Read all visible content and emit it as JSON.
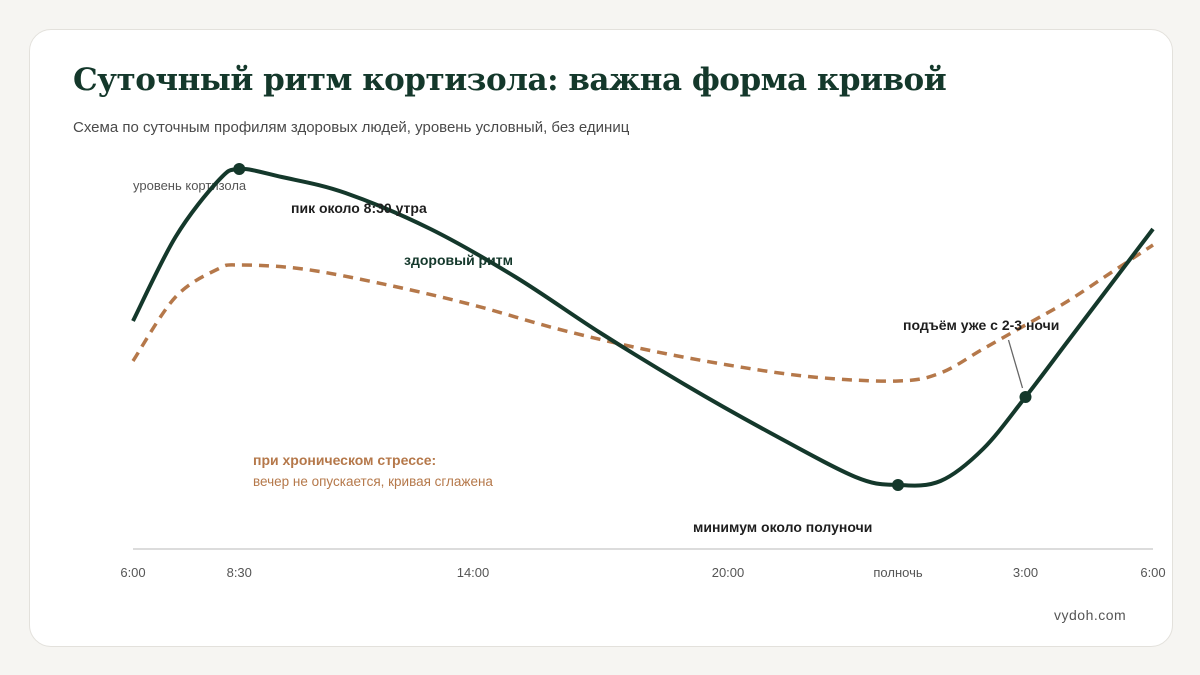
{
  "title": "Суточный ритм кортизола: важна форма кривой",
  "subtitle": "Схема по суточным профилям здоровых людей, уровень условный, без единиц",
  "watermark": "vydoh.com",
  "colors": {
    "healthy": "#14382b",
    "stress": "#b5784a",
    "axis": "#dcdcdc",
    "tick_text": "#555555",
    "annotation": "#1e1e1e"
  },
  "chart_data": {
    "type": "line",
    "ylabel": "уровень кортизола",
    "x_ticks": [
      "6:00",
      "8:30",
      "14:00",
      "20:00",
      "полночь",
      "3:00",
      "6:00"
    ],
    "x_tick_hours": [
      0,
      2.5,
      8,
      14,
      18,
      21,
      24
    ],
    "xlim": [
      0,
      24
    ],
    "ylim": [
      0,
      100
    ],
    "grid": false,
    "series": [
      {
        "name": "здоровый ритм",
        "style": "solid",
        "x": [
          0,
          1,
          2,
          2.5,
          3.5,
          5,
          7,
          9,
          11,
          13,
          15,
          17,
          18,
          19,
          20,
          21,
          22,
          23,
          24
        ],
        "y": [
          57,
          78,
          92,
          95,
          93,
          89,
          80,
          68,
          54,
          41,
          29,
          18,
          16,
          17,
          25,
          38,
          52,
          66,
          80
        ]
      },
      {
        "name": "при хроническом стрессе:",
        "description": "вечер не опускается, кривая сглажена",
        "style": "dashed",
        "x": [
          0,
          1,
          2,
          2.5,
          4,
          6,
          8,
          10,
          12,
          14,
          16,
          18,
          19,
          20,
          21,
          22,
          23,
          24
        ],
        "y": [
          47,
          63,
          70,
          71,
          70,
          66,
          61,
          55,
          50,
          46,
          43,
          42,
          44,
          50,
          56,
          62,
          69,
          76
        ]
      }
    ],
    "annotations": [
      {
        "text": "пик около 8:30 утра",
        "series": 0,
        "x": 2.5,
        "y": 95,
        "marker": true
      },
      {
        "text": "минимум около полуночи",
        "series": 0,
        "x": 18,
        "y": 16,
        "marker": true
      },
      {
        "text": "подъём уже с 2-3 ночи",
        "series": 0,
        "x": 21,
        "y": 38,
        "marker": true,
        "leader": true
      }
    ]
  }
}
